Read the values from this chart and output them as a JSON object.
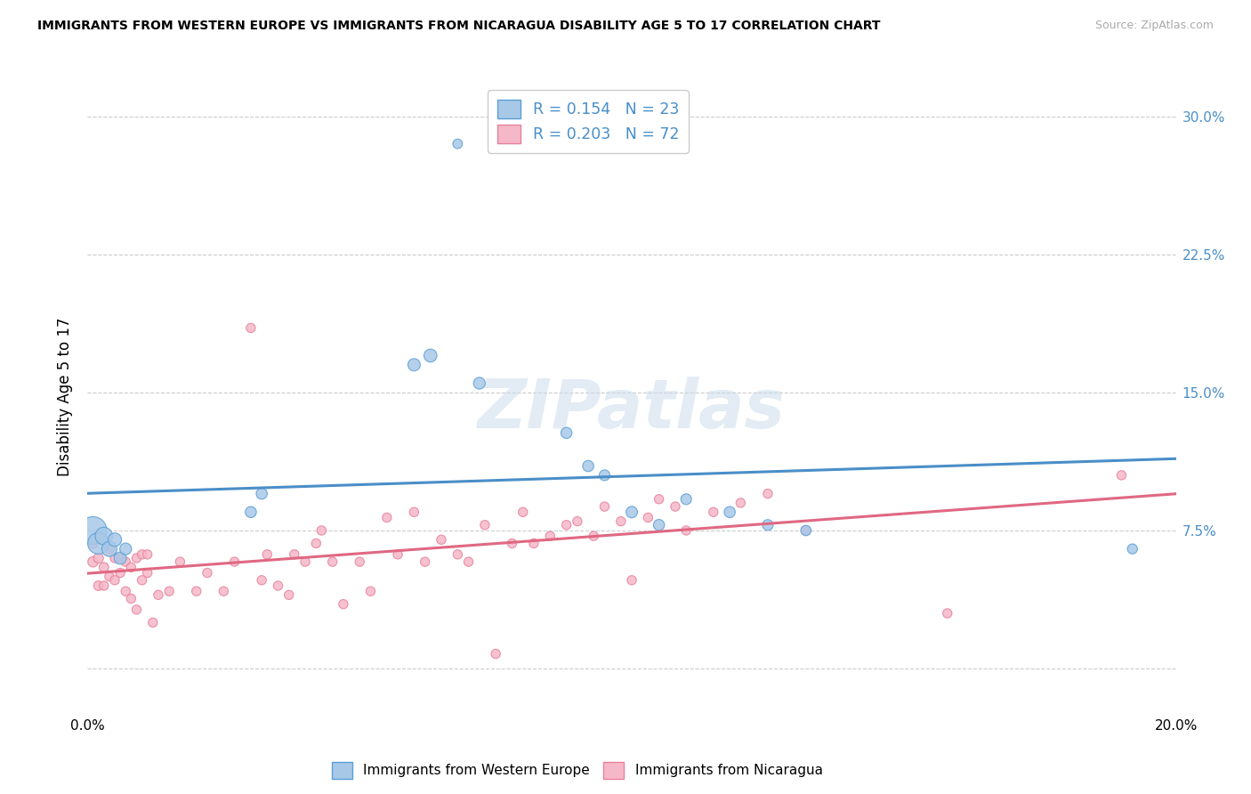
{
  "title": "IMMIGRANTS FROM WESTERN EUROPE VS IMMIGRANTS FROM NICARAGUA DISABILITY AGE 5 TO 17 CORRELATION CHART",
  "source": "Source: ZipAtlas.com",
  "ylabel": "Disability Age 5 to 17",
  "xlim": [
    0.0,
    0.2
  ],
  "ylim": [
    -0.025,
    0.32
  ],
  "ytick_positions": [
    0.0,
    0.075,
    0.15,
    0.225,
    0.3
  ],
  "ytick_labels": [
    "",
    "7.5%",
    "15.0%",
    "22.5%",
    "30.0%"
  ],
  "xtick_positions": [
    0.0,
    0.05,
    0.1,
    0.15,
    0.2
  ],
  "xtick_labels": [
    "0.0%",
    "",
    "",
    "",
    "20.0%"
  ],
  "legend_r_blue": "0.154",
  "legend_n_blue": "23",
  "legend_r_pink": "0.203",
  "legend_n_pink": "72",
  "blue_scatter_color": "#a8c8e8",
  "blue_edge_color": "#5a9fd4",
  "pink_scatter_color": "#f5b8c8",
  "pink_edge_color": "#e8809a",
  "blue_line_color": "#4a8ec8",
  "pink_line_color": "#e06882",
  "watermark": "ZIPatlas",
  "we_x": [
    0.068,
    0.001,
    0.002,
    0.003,
    0.004,
    0.005,
    0.006,
    0.007,
    0.03,
    0.032,
    0.06,
    0.063,
    0.072,
    0.088,
    0.092,
    0.095,
    0.1,
    0.105,
    0.11,
    0.118,
    0.125,
    0.132,
    0.192
  ],
  "we_y": [
    0.285,
    0.075,
    0.068,
    0.072,
    0.065,
    0.07,
    0.06,
    0.065,
    0.085,
    0.095,
    0.165,
    0.17,
    0.155,
    0.128,
    0.11,
    0.105,
    0.085,
    0.078,
    0.092,
    0.085,
    0.078,
    0.075,
    0.065
  ],
  "we_sizes": [
    60,
    500,
    300,
    200,
    150,
    120,
    100,
    90,
    80,
    80,
    100,
    110,
    90,
    80,
    80,
    75,
    85,
    80,
    75,
    80,
    75,
    70,
    65
  ],
  "ni_x": [
    0.001,
    0.001,
    0.002,
    0.002,
    0.003,
    0.003,
    0.004,
    0.004,
    0.005,
    0.005,
    0.006,
    0.006,
    0.007,
    0.007,
    0.008,
    0.008,
    0.009,
    0.009,
    0.01,
    0.01,
    0.011,
    0.011,
    0.012,
    0.013,
    0.015,
    0.017,
    0.02,
    0.022,
    0.025,
    0.027,
    0.03,
    0.032,
    0.033,
    0.035,
    0.037,
    0.038,
    0.04,
    0.042,
    0.043,
    0.045,
    0.047,
    0.05,
    0.052,
    0.055,
    0.057,
    0.06,
    0.062,
    0.065,
    0.068,
    0.07,
    0.073,
    0.075,
    0.078,
    0.08,
    0.082,
    0.085,
    0.088,
    0.09,
    0.093,
    0.095,
    0.098,
    0.1,
    0.103,
    0.105,
    0.108,
    0.11,
    0.115,
    0.12,
    0.125,
    0.132,
    0.158,
    0.19
  ],
  "ni_y": [
    0.058,
    0.068,
    0.06,
    0.045,
    0.055,
    0.045,
    0.065,
    0.05,
    0.06,
    0.048,
    0.06,
    0.052,
    0.058,
    0.042,
    0.055,
    0.038,
    0.06,
    0.032,
    0.062,
    0.048,
    0.062,
    0.052,
    0.025,
    0.04,
    0.042,
    0.058,
    0.042,
    0.052,
    0.042,
    0.058,
    0.185,
    0.048,
    0.062,
    0.045,
    0.04,
    0.062,
    0.058,
    0.068,
    0.075,
    0.058,
    0.035,
    0.058,
    0.042,
    0.082,
    0.062,
    0.085,
    0.058,
    0.07,
    0.062,
    0.058,
    0.078,
    0.008,
    0.068,
    0.085,
    0.068,
    0.072,
    0.078,
    0.08,
    0.072,
    0.088,
    0.08,
    0.048,
    0.082,
    0.092,
    0.088,
    0.075,
    0.085,
    0.09,
    0.095,
    0.075,
    0.03,
    0.105
  ],
  "ni_sizes": [
    70,
    65,
    65,
    60,
    60,
    55,
    60,
    55,
    55,
    55,
    55,
    55,
    55,
    55,
    55,
    55,
    55,
    55,
    55,
    55,
    55,
    55,
    55,
    55,
    55,
    55,
    55,
    55,
    55,
    55,
    55,
    55,
    55,
    55,
    55,
    55,
    55,
    55,
    55,
    55,
    55,
    55,
    55,
    55,
    55,
    55,
    55,
    55,
    55,
    55,
    55,
    55,
    55,
    55,
    55,
    55,
    55,
    55,
    55,
    55,
    55,
    55,
    55,
    55,
    55,
    55,
    55,
    55,
    55,
    55,
    55,
    55
  ]
}
